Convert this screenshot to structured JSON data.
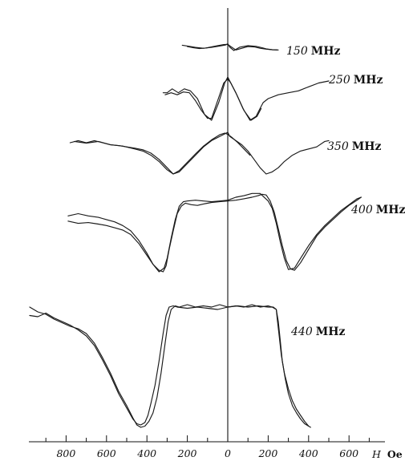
{
  "chart_data": {
    "type": "line",
    "title": "",
    "xlabel": {
      "symbol": "H",
      "unit": "Oe"
    },
    "ylabel": "",
    "xlim": [
      1000,
      -1000
    ],
    "x_ticks": [
      {
        "value": 800,
        "label": "800"
      },
      {
        "value": 600,
        "label": "600"
      },
      {
        "value": 400,
        "label": "400"
      },
      {
        "value": 200,
        "label": "200"
      },
      {
        "value": 0,
        "label": "0"
      },
      {
        "value": -200,
        "label": "200"
      },
      {
        "value": -400,
        "label": "400"
      },
      {
        "value": -600,
        "label": "600"
      }
    ],
    "series": [
      {
        "name": "150 MHz",
        "label_number": "150",
        "label_unit": "MHz",
        "traces": [
          {
            "x": [
              225,
              190,
              160,
              120,
              80,
              40,
              10,
              0,
              -10,
              -30,
              -60,
              -100,
              -140,
              -170,
              -190,
              -220,
              -250
            ],
            "y": [
              0.05,
              0.25,
              0.45,
              0.6,
              0.45,
              0.2,
              0.0,
              -0.2,
              0.4,
              1.0,
              0.4,
              0.15,
              0.25,
              0.5,
              0.7,
              0.85,
              0.9
            ]
          },
          {
            "x": [
              200,
              170,
              140,
              110,
              80,
              50,
              20,
              0,
              -15,
              -40,
              -70,
              -100,
              -130,
              -160,
              -190,
              -220,
              -245
            ],
            "y": [
              0.3,
              0.5,
              0.65,
              0.55,
              0.35,
              0.15,
              -0.05,
              -0.1,
              0.3,
              0.9,
              0.6,
              0.3,
              0.35,
              0.6,
              0.75,
              0.85,
              0.9
            ]
          }
        ]
      },
      {
        "name": "250 MHz",
        "label_number": "250",
        "label_unit": "MHz",
        "traces": [
          {
            "x": [
              320,
              300,
              275,
              245,
              215,
              185,
              150,
              115,
              80,
              45,
              15,
              0,
              -10,
              -40,
              -75,
              -110,
              -140,
              -160,
              -175,
              -200,
              -250,
              -300,
              -350,
              -400,
              -450,
              -500
            ],
            "y": [
              0.3,
              0.3,
              0.2,
              0.3,
              0.2,
              0.25,
              0.45,
              0.85,
              1.0,
              0.55,
              0.05,
              -0.1,
              0.0,
              0.3,
              0.7,
              1.0,
              0.9,
              0.7,
              0.55,
              0.45,
              0.35,
              0.3,
              0.25,
              0.15,
              0.05,
              0.0
            ]
          },
          {
            "x": [
              310,
              280,
              250,
              220,
              190,
              160,
              130,
              100,
              80,
              50,
              20,
              0,
              -15,
              -45,
              -80,
              -115,
              -145,
              -165
            ],
            "y": [
              0.35,
              0.3,
              0.35,
              0.28,
              0.3,
              0.5,
              0.75,
              0.95,
              0.95,
              0.5,
              0.05,
              -0.05,
              0.05,
              0.35,
              0.75,
              1.0,
              0.9,
              0.7
            ]
          }
        ]
      },
      {
        "name": "350 MHz",
        "label_number": "350",
        "label_unit": "MHz",
        "traces": [
          {
            "x": [
              780,
              740,
              700,
              660,
              620,
              580,
              540,
              500,
              460,
              420,
              380,
              340,
              300,
              270,
              240,
              200,
              160,
              120,
              80,
              40,
              20,
              0,
              -10,
              -40,
              -70,
              -100,
              -130,
              -160,
              -190,
              -220,
              -250,
              -280,
              -320,
              -360,
              -400,
              -440,
              -480,
              -500
            ],
            "y": [
              0.25,
              0.2,
              0.25,
              0.2,
              0.25,
              0.3,
              0.32,
              0.35,
              0.38,
              0.42,
              0.5,
              0.65,
              0.85,
              1.0,
              0.95,
              0.75,
              0.55,
              0.35,
              0.2,
              0.1,
              0.05,
              0.0,
              0.1,
              0.2,
              0.3,
              0.45,
              0.65,
              0.85,
              1.0,
              0.95,
              0.85,
              0.7,
              0.55,
              0.45,
              0.4,
              0.35,
              0.22,
              0.2
            ]
          },
          {
            "x": [
              760,
              700,
              640,
              580,
              520,
              460,
              420,
              380,
              340,
              300,
              270,
              240,
              200,
              160,
              120,
              80,
              40,
              15,
              0,
              -20,
              -50,
              -80,
              -110
            ],
            "y": [
              0.22,
              0.26,
              0.22,
              0.3,
              0.33,
              0.4,
              0.45,
              0.55,
              0.7,
              0.9,
              1.0,
              0.92,
              0.72,
              0.52,
              0.33,
              0.18,
              0.06,
              0.02,
              0.05,
              0.12,
              0.25,
              0.4,
              0.55
            ]
          }
        ]
      },
      {
        "name": "400 MHz",
        "label_number": "400",
        "label_unit": "MHz",
        "traces": [
          {
            "x": [
              790,
              740,
              690,
              640,
              600,
              560,
              520,
              480,
              440,
              400,
              370,
              340,
              315,
              300,
              280,
              260,
              240,
              220,
              200,
              160,
              120,
              80,
              40,
              0,
              -40,
              -80,
              -120,
              -160,
              -200,
              -220,
              -240,
              -260,
              -280,
              -300,
              -330,
              -360,
              -400,
              -440,
              -480,
              -520,
              -560,
              -600,
              -640,
              -660
            ],
            "y": [
              0.25,
              0.22,
              0.25,
              0.27,
              0.3,
              0.33,
              0.38,
              0.45,
              0.58,
              0.75,
              0.9,
              1.0,
              0.95,
              0.82,
              0.55,
              0.3,
              0.12,
              0.06,
              0.05,
              0.04,
              0.05,
              0.06,
              0.05,
              0.04,
              0.0,
              -0.02,
              -0.05,
              -0.05,
              0.05,
              0.15,
              0.35,
              0.6,
              0.82,
              0.97,
              0.95,
              0.82,
              0.65,
              0.5,
              0.38,
              0.28,
              0.18,
              0.1,
              0.02,
              0.0
            ]
          },
          {
            "x": [
              790,
              740,
              690,
              640,
              600,
              560,
              520,
              480,
              440,
              400,
              370,
              340,
              320,
              305,
              290,
              270,
              250,
              230,
              210,
              180,
              150,
              120,
              80,
              40,
              0,
              -40,
              -80,
              -120,
              -150,
              -170,
              -190,
              -210,
              -230,
              -250,
              -270,
              -290,
              -310,
              -330,
              -360,
              -400,
              -440,
              -480,
              -520,
              -560,
              -600,
              -640,
              -660
            ],
            "y": [
              0.32,
              0.35,
              0.34,
              0.36,
              0.38,
              0.41,
              0.44,
              0.5,
              0.62,
              0.78,
              0.9,
              0.98,
              1.0,
              0.92,
              0.7,
              0.45,
              0.22,
              0.12,
              0.08,
              0.1,
              0.11,
              0.09,
              0.07,
              0.06,
              0.05,
              0.04,
              0.02,
              0.0,
              -0.02,
              -0.04,
              -0.03,
              0.05,
              0.2,
              0.42,
              0.65,
              0.85,
              0.96,
              0.98,
              0.88,
              0.7,
              0.52,
              0.4,
              0.3,
              0.2,
              0.11,
              0.04,
              0.0
            ]
          }
        ]
      },
      {
        "name": "440 MHz",
        "label_number": "440",
        "label_unit": "MHz",
        "traces": [
          {
            "x": [
              980,
              940,
              900,
              860,
              820,
              780,
              740,
              700,
              660,
              620,
              580,
              540,
              500,
              470,
              450,
              430,
              410,
              390,
              370,
              350,
              330,
              310,
              295,
              280,
              260,
              240,
              200,
              160,
              120,
              80,
              40,
              0,
              -40,
              -80,
              -120,
              -160,
              -200,
              -220,
              -240,
              -245,
              -255,
              -265,
              -280,
              -300,
              -320,
              -340,
              -360,
              -380,
              -400,
              -410
            ],
            "y": [
              0.0,
              0.04,
              0.06,
              0.1,
              0.13,
              0.16,
              0.18,
              0.22,
              0.3,
              0.42,
              0.55,
              0.7,
              0.82,
              0.92,
              0.98,
              1.0,
              0.99,
              0.95,
              0.88,
              0.75,
              0.55,
              0.3,
              0.12,
              0.02,
              -0.01,
              0.0,
              -0.02,
              0.0,
              -0.01,
              0.0,
              -0.02,
              0.0,
              -0.01,
              0.0,
              -0.02,
              0.0,
              -0.01,
              0.0,
              0.02,
              0.1,
              0.25,
              0.4,
              0.55,
              0.68,
              0.78,
              0.85,
              0.9,
              0.95,
              0.99,
              1.0
            ]
          },
          {
            "x": [
              980,
              940,
              900,
              860,
              820,
              780,
              740,
              700,
              660,
              620,
              580,
              540,
              500,
              470,
              450,
              430,
              410,
              395,
              380,
              360,
              340,
              320,
              305,
              290,
              270,
              250,
              200,
              150,
              100,
              50,
              0,
              -50,
              -100,
              -150,
              -200,
              -225,
              -240,
              -250,
              -260,
              -270,
              -285,
              -300,
              -320,
              -340,
              -360,
              -380,
              -400
            ],
            "y": [
              0.07,
              0.08,
              0.05,
              0.09,
              0.12,
              0.15,
              0.19,
              0.24,
              0.32,
              0.44,
              0.57,
              0.72,
              0.84,
              0.93,
              0.97,
              0.98,
              0.96,
              0.9,
              0.8,
              0.65,
              0.45,
              0.22,
              0.07,
              0.0,
              -0.01,
              0.0,
              0.01,
              0.0,
              0.01,
              0.02,
              0.0,
              -0.01,
              0.0,
              -0.01,
              0.0,
              0.0,
              0.02,
              0.12,
              0.28,
              0.45,
              0.6,
              0.72,
              0.82,
              0.88,
              0.93,
              0.97,
              0.99
            ]
          }
        ]
      }
    ],
    "grid": false,
    "legend": "none"
  }
}
